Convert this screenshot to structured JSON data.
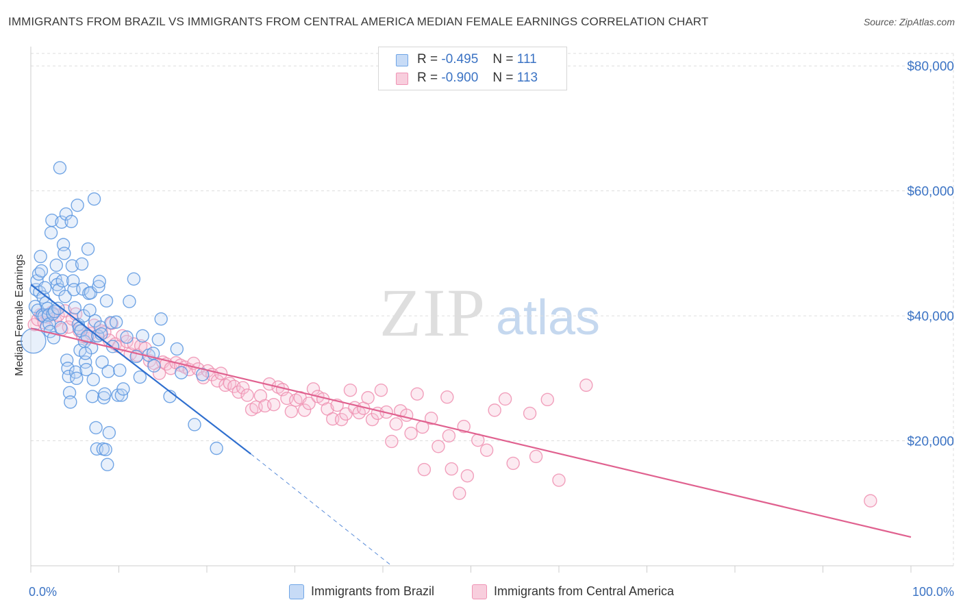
{
  "title": "IMMIGRANTS FROM BRAZIL VS IMMIGRANTS FROM CENTRAL AMERICA MEDIAN FEMALE EARNINGS CORRELATION CHART",
  "source": "Source: ZipAtlas.com",
  "watermark": {
    "zip": "ZIP",
    "atlas": "atlas"
  },
  "legend": {
    "r_label": "R =",
    "n_label": "N =",
    "rows": [
      {
        "r": "-0.495",
        "n": "111",
        "color": "#6fa5e6",
        "fill": "#c7dbf6"
      },
      {
        "r": "-0.900",
        "n": "113",
        "color": "#ef93b4",
        "fill": "#f8cedd"
      }
    ]
  },
  "colors": {
    "brazil": "#5b96e0",
    "brazil_line": "#2f6fcf",
    "central": "#ee8fb0",
    "central_line": "#e0618f",
    "axis_text": "#3b73c4"
  },
  "chart_data": {
    "type": "scatter",
    "title": "IMMIGRANTS FROM BRAZIL VS IMMIGRANTS FROM CENTRAL AMERICA MEDIAN FEMALE EARNINGS CORRELATION CHART",
    "xlabel": "",
    "ylabel": "Median Female Earnings",
    "x_tick_labels": [
      "0.0%",
      "100.0%"
    ],
    "y_tick_labels": [
      "$20,000",
      "$40,000",
      "$60,000",
      "$80,000"
    ],
    "y_ticks": [
      20000,
      40000,
      60000,
      80000
    ],
    "xlim": [
      0,
      100
    ],
    "ylim": [
      0,
      82000
    ],
    "grid": true,
    "legend_position": "top-center",
    "series": [
      {
        "name": "Immigrants from Brazil",
        "r": -0.495,
        "n": 111,
        "trend": {
          "x0": 0,
          "y0": 45000,
          "x1": 25,
          "y1": 17900,
          "dash_to_x": 41,
          "dash_to_y": 0
        },
        "points": [
          [
            0.3,
            36000
          ],
          [
            0.5,
            41500
          ],
          [
            0.6,
            44200
          ],
          [
            0.7,
            45600
          ],
          [
            0.8,
            40900
          ],
          [
            0.9,
            46700
          ],
          [
            1.0,
            43800
          ],
          [
            1.1,
            49500
          ],
          [
            1.2,
            47200
          ],
          [
            1.3,
            40100
          ],
          [
            1.4,
            43000
          ],
          [
            1.5,
            39900
          ],
          [
            1.6,
            44500
          ],
          [
            1.7,
            42100
          ],
          [
            1.8,
            38300
          ],
          [
            1.9,
            41200
          ],
          [
            2.0,
            40100
          ],
          [
            2.1,
            38700
          ],
          [
            2.2,
            37500
          ],
          [
            2.3,
            53300
          ],
          [
            2.4,
            55300
          ],
          [
            2.5,
            40300
          ],
          [
            2.6,
            36500
          ],
          [
            2.7,
            40700
          ],
          [
            2.8,
            45900
          ],
          [
            2.9,
            48100
          ],
          [
            3.0,
            45000
          ],
          [
            3.1,
            41200
          ],
          [
            3.2,
            44200
          ],
          [
            3.3,
            63700
          ],
          [
            3.4,
            38100
          ],
          [
            3.5,
            55000
          ],
          [
            3.6,
            45600
          ],
          [
            3.7,
            51400
          ],
          [
            3.8,
            50000
          ],
          [
            3.9,
            43100
          ],
          [
            4.0,
            56300
          ],
          [
            4.1,
            32900
          ],
          [
            4.2,
            31600
          ],
          [
            4.3,
            30300
          ],
          [
            4.4,
            27700
          ],
          [
            4.5,
            26200
          ],
          [
            4.6,
            55100
          ],
          [
            4.7,
            48000
          ],
          [
            4.8,
            45600
          ],
          [
            4.9,
            44200
          ],
          [
            5.0,
            41300
          ],
          [
            5.1,
            31000
          ],
          [
            5.2,
            30000
          ],
          [
            5.3,
            57700
          ],
          [
            5.4,
            38600
          ],
          [
            5.5,
            38000
          ],
          [
            5.6,
            34500
          ],
          [
            5.7,
            37600
          ],
          [
            5.8,
            48300
          ],
          [
            5.9,
            44300
          ],
          [
            6.0,
            40000
          ],
          [
            6.1,
            35900
          ],
          [
            6.2,
            32600
          ],
          [
            6.3,
            31400
          ],
          [
            6.4,
            36700
          ],
          [
            6.5,
            50700
          ],
          [
            6.6,
            43600
          ],
          [
            6.7,
            40900
          ],
          [
            6.8,
            43700
          ],
          [
            6.9,
            34900
          ],
          [
            7.0,
            27100
          ],
          [
            7.1,
            29800
          ],
          [
            7.2,
            58700
          ],
          [
            7.3,
            39200
          ],
          [
            7.4,
            22100
          ],
          [
            7.5,
            18700
          ],
          [
            7.6,
            36800
          ],
          [
            7.7,
            44700
          ],
          [
            7.8,
            45500
          ],
          [
            7.9,
            38200
          ],
          [
            8.0,
            37100
          ],
          [
            8.1,
            32600
          ],
          [
            8.2,
            18700
          ],
          [
            8.3,
            26900
          ],
          [
            8.4,
            27500
          ],
          [
            8.5,
            18600
          ],
          [
            8.6,
            42400
          ],
          [
            8.7,
            16200
          ],
          [
            8.8,
            31100
          ],
          [
            8.9,
            21300
          ],
          [
            9.1,
            38900
          ],
          [
            9.3,
            35100
          ],
          [
            9.7,
            39000
          ],
          [
            9.9,
            27300
          ],
          [
            10.1,
            31300
          ],
          [
            10.3,
            27300
          ],
          [
            10.5,
            28300
          ],
          [
            10.9,
            36600
          ],
          [
            11.2,
            42300
          ],
          [
            11.7,
            45900
          ],
          [
            12.0,
            33500
          ],
          [
            12.4,
            30200
          ],
          [
            12.7,
            36800
          ],
          [
            13.4,
            33700
          ],
          [
            14.0,
            32000
          ],
          [
            14.5,
            36200
          ],
          [
            14.8,
            39500
          ],
          [
            15.8,
            27100
          ],
          [
            16.6,
            34700
          ],
          [
            17.1,
            30900
          ],
          [
            18.6,
            22600
          ],
          [
            19.5,
            30600
          ],
          [
            21.1,
            18800
          ],
          [
            13.9,
            34000
          ],
          [
            6.2,
            34000
          ]
        ]
      },
      {
        "name": "Immigrants from Central America",
        "r": -0.9,
        "n": 113,
        "trend": {
          "x0": 0,
          "y0": 38000,
          "x1": 100,
          "y1": 4600
        },
        "points": [
          [
            0.4,
            38600
          ],
          [
            0.8,
            39400
          ],
          [
            1.1,
            40200
          ],
          [
            1.5,
            38900
          ],
          [
            1.9,
            39800
          ],
          [
            2.4,
            40600
          ],
          [
            2.8,
            39200
          ],
          [
            3.1,
            40100
          ],
          [
            3.5,
            37800
          ],
          [
            3.9,
            40800
          ],
          [
            4.3,
            38200
          ],
          [
            4.7,
            39500
          ],
          [
            5.1,
            40300
          ],
          [
            5.5,
            37600
          ],
          [
            5.9,
            36700
          ],
          [
            6.4,
            36400
          ],
          [
            6.8,
            37200
          ],
          [
            7.2,
            38500
          ],
          [
            7.6,
            36800
          ],
          [
            8.0,
            37600
          ],
          [
            8.4,
            37400
          ],
          [
            8.9,
            36100
          ],
          [
            9.2,
            38800
          ],
          [
            9.6,
            35500
          ],
          [
            10.0,
            35100
          ],
          [
            10.4,
            36800
          ],
          [
            10.9,
            35900
          ],
          [
            11.3,
            33900
          ],
          [
            11.7,
            35500
          ],
          [
            12.1,
            33700
          ],
          [
            12.5,
            35200
          ],
          [
            13.0,
            34800
          ],
          [
            13.5,
            32800
          ],
          [
            14.0,
            32400
          ],
          [
            14.6,
            30800
          ],
          [
            15.0,
            32600
          ],
          [
            15.4,
            32300
          ],
          [
            15.9,
            31600
          ],
          [
            16.5,
            32500
          ],
          [
            17.0,
            32100
          ],
          [
            17.5,
            31800
          ],
          [
            18.0,
            31400
          ],
          [
            18.5,
            32400
          ],
          [
            19.0,
            31500
          ],
          [
            19.6,
            30100
          ],
          [
            20.1,
            31200
          ],
          [
            20.6,
            30600
          ],
          [
            21.2,
            29600
          ],
          [
            21.6,
            30800
          ],
          [
            22.1,
            28900
          ],
          [
            22.6,
            29200
          ],
          [
            23.1,
            28700
          ],
          [
            23.6,
            27800
          ],
          [
            24.1,
            28500
          ],
          [
            24.6,
            27300
          ],
          [
            25.1,
            25000
          ],
          [
            25.6,
            25400
          ],
          [
            26.1,
            27200
          ],
          [
            26.6,
            25600
          ],
          [
            27.1,
            29100
          ],
          [
            27.6,
            25800
          ],
          [
            28.1,
            28600
          ],
          [
            28.6,
            28200
          ],
          [
            29.1,
            26800
          ],
          [
            29.6,
            24700
          ],
          [
            30.1,
            26500
          ],
          [
            30.6,
            26900
          ],
          [
            31.1,
            24900
          ],
          [
            31.6,
            26000
          ],
          [
            32.1,
            28300
          ],
          [
            32.6,
            27100
          ],
          [
            33.2,
            26700
          ],
          [
            33.7,
            25100
          ],
          [
            34.3,
            23500
          ],
          [
            34.8,
            25700
          ],
          [
            35.3,
            23400
          ],
          [
            35.8,
            24300
          ],
          [
            36.3,
            28100
          ],
          [
            36.8,
            25300
          ],
          [
            37.3,
            24500
          ],
          [
            37.8,
            25200
          ],
          [
            38.3,
            26900
          ],
          [
            38.8,
            23400
          ],
          [
            39.4,
            24400
          ],
          [
            39.8,
            28100
          ],
          [
            40.4,
            24600
          ],
          [
            41.0,
            19900
          ],
          [
            41.5,
            22700
          ],
          [
            42.0,
            24800
          ],
          [
            42.7,
            24100
          ],
          [
            43.2,
            21200
          ],
          [
            43.9,
            27500
          ],
          [
            44.5,
            22200
          ],
          [
            44.7,
            15400
          ],
          [
            45.5,
            23600
          ],
          [
            46.3,
            19100
          ],
          [
            47.3,
            27000
          ],
          [
            47.5,
            20800
          ],
          [
            47.8,
            15500
          ],
          [
            48.7,
            11600
          ],
          [
            49.2,
            22300
          ],
          [
            49.6,
            14400
          ],
          [
            50.8,
            20100
          ],
          [
            51.8,
            18500
          ],
          [
            52.7,
            24900
          ],
          [
            53.9,
            26700
          ],
          [
            54.8,
            16400
          ],
          [
            56.7,
            24400
          ],
          [
            57.4,
            17500
          ],
          [
            58.7,
            26600
          ],
          [
            60.0,
            13700
          ],
          [
            63.1,
            28900
          ],
          [
            95.4,
            10400
          ]
        ]
      }
    ]
  },
  "bottom_legend": [
    {
      "label": "Immigrants from Brazil",
      "series": 0
    },
    {
      "label": "Immigrants from Central America",
      "series": 1
    }
  ]
}
